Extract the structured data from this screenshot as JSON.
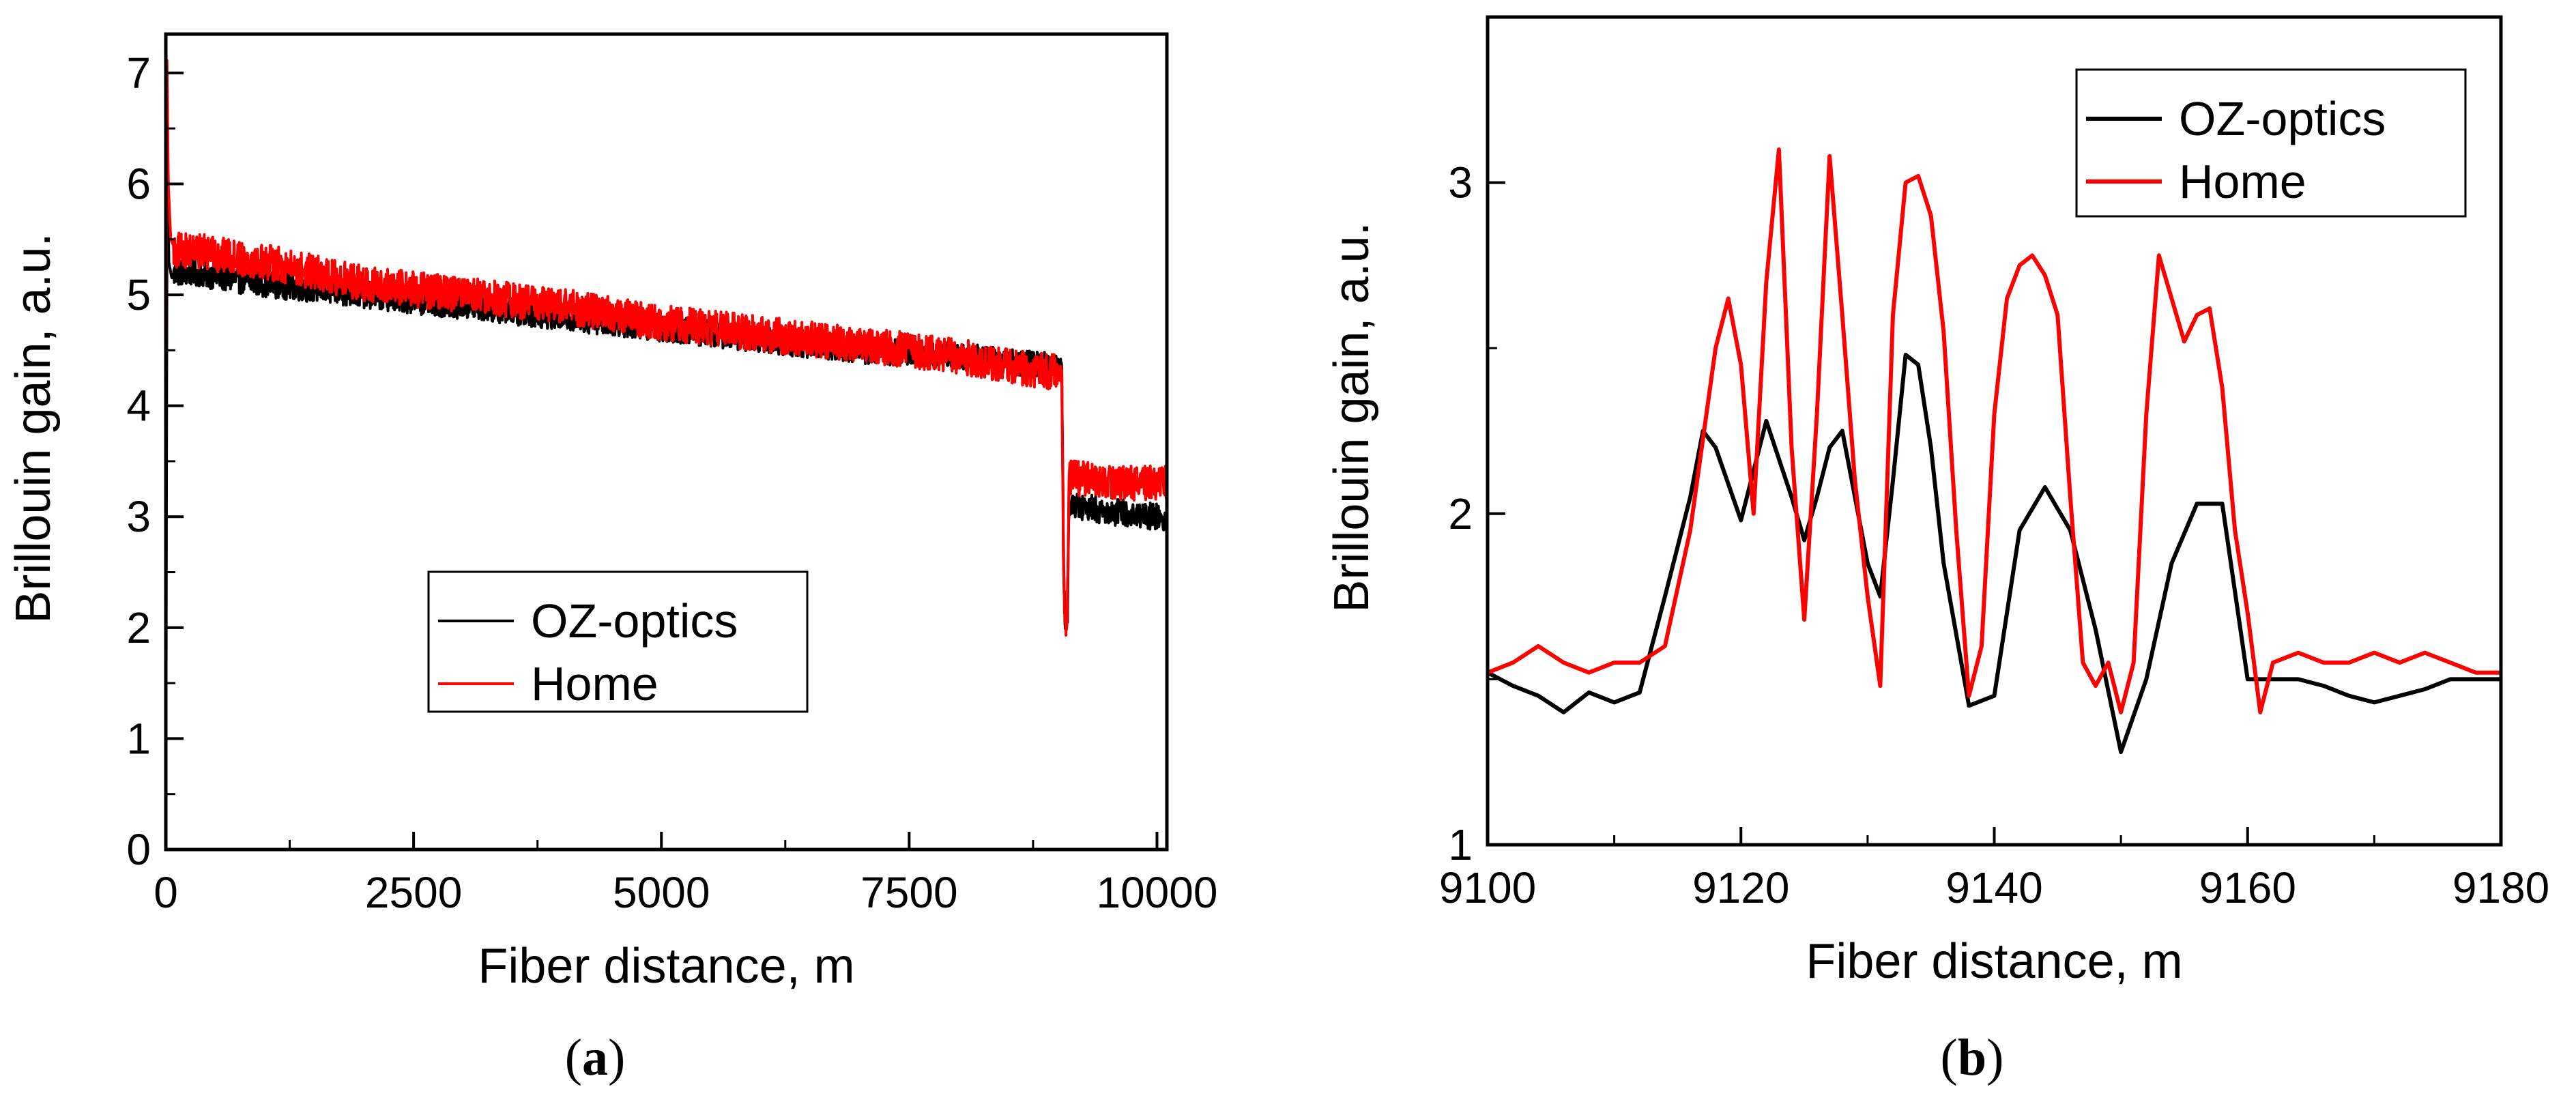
{
  "chart_data": [
    {
      "type": "line",
      "panel_label": "a",
      "caption_open": "(",
      "caption_close": ")",
      "xlabel": "Fiber distance, m",
      "ylabel": "Brillouin gain, a.u.",
      "xlim": [
        0,
        10100
      ],
      "ylim": [
        0,
        7.35
      ],
      "xticks": [
        0,
        2500,
        5000,
        7500,
        10000
      ],
      "xtick_labels": [
        "0",
        "2500",
        "5000",
        "7500",
        "10000"
      ],
      "yticks": [
        0,
        1,
        2,
        3,
        4,
        5,
        6,
        7
      ],
      "ytick_labels": [
        "0",
        "1",
        "2",
        "3",
        "4",
        "5",
        "6",
        "7"
      ],
      "legend": {
        "position": "lower-center",
        "entries": [
          "OZ-optics",
          "Home"
        ]
      },
      "series": [
        {
          "name": "OZ-optics",
          "color": "#000000",
          "noise": 0.12,
          "x": [
            0,
            15,
            30,
            60,
            100,
            300,
            600,
            1000,
            2000,
            3000,
            4000,
            5000,
            6000,
            7000,
            8000,
            8500,
            9000,
            9040,
            9060,
            9080,
            9100,
            9110,
            9130,
            9200,
            9500,
            10000,
            10100
          ],
          "values": [
            0.2,
            6.8,
            5.3,
            5.15,
            5.2,
            5.2,
            5.15,
            5.1,
            5.0,
            4.9,
            4.8,
            4.7,
            4.6,
            4.5,
            4.45,
            4.4,
            4.35,
            4.35,
            2.5,
            1.9,
            2.2,
            3.1,
            3.1,
            3.1,
            3.05,
            3.0,
            2.95
          ]
        },
        {
          "name": "Home",
          "color": "#ff0000",
          "noise": 0.16,
          "x": [
            0,
            10,
            25,
            50,
            100,
            300,
            600,
            1000,
            2000,
            3000,
            4000,
            5000,
            6000,
            7000,
            8000,
            8500,
            9000,
            9040,
            9060,
            9080,
            9100,
            9110,
            9130,
            9200,
            9500,
            10000,
            10100
          ],
          "values": [
            2.8,
            7.25,
            6.0,
            5.5,
            5.4,
            5.4,
            5.35,
            5.3,
            5.1,
            5.0,
            4.9,
            4.75,
            4.65,
            4.55,
            4.45,
            4.35,
            4.3,
            4.3,
            2.3,
            2.0,
            2.3,
            3.3,
            3.35,
            3.35,
            3.3,
            3.3,
            3.3
          ]
        }
      ]
    },
    {
      "type": "line",
      "panel_label": "b",
      "caption_open": "(",
      "caption_close": ")",
      "xlabel": "Fiber distance, m",
      "ylabel": "Brillouin gain, a.u.",
      "xlim": [
        9100,
        9180
      ],
      "ylim": [
        1,
        3.5
      ],
      "xticks": [
        9100,
        9120,
        9140,
        9160,
        9180
      ],
      "xtick_labels": [
        "9100",
        "9120",
        "9140",
        "9160",
        "9180"
      ],
      "yticks": [
        1,
        2,
        3
      ],
      "ytick_labels": [
        "1",
        "2",
        "3"
      ],
      "legend": {
        "position": "top-right",
        "entries": [
          "OZ-optics",
          "Home"
        ]
      },
      "series": [
        {
          "name": "OZ-optics",
          "color": "#000000",
          "x": [
            9100,
            9102,
            9104,
            9106,
            9108,
            9110,
            9112,
            9114,
            9116,
            9117,
            9118,
            9120,
            9122,
            9124,
            9125,
            9126,
            9127,
            9128,
            9130,
            9131,
            9132,
            9133,
            9134,
            9135,
            9136,
            9138,
            9140,
            9142,
            9144,
            9146,
            9148,
            9150,
            9152,
            9154,
            9156,
            9158,
            9160,
            9162,
            9164,
            9166,
            9168,
            9170,
            9172,
            9174,
            9176,
            9178,
            9180
          ],
          "values": [
            1.52,
            1.48,
            1.45,
            1.4,
            1.46,
            1.43,
            1.46,
            1.75,
            2.05,
            2.25,
            2.2,
            1.98,
            2.28,
            2.05,
            1.92,
            2.05,
            2.2,
            2.25,
            1.85,
            1.75,
            2.1,
            2.48,
            2.45,
            2.2,
            1.85,
            1.42,
            1.45,
            1.95,
            2.08,
            1.95,
            1.65,
            1.28,
            1.5,
            1.85,
            2.03,
            2.03,
            1.5,
            1.5,
            1.5,
            1.48,
            1.45,
            1.43,
            1.45,
            1.47,
            1.5,
            1.5,
            1.5
          ]
        },
        {
          "name": "Home",
          "color": "#ff0000",
          "x": [
            9100,
            9102,
            9104,
            9106,
            9108,
            9110,
            9112,
            9114,
            9116,
            9118,
            9119,
            9120,
            9121,
            9122,
            9123,
            9124,
            9125,
            9126,
            9127,
            9128,
            9129,
            9130,
            9131,
            9132,
            9133,
            9134,
            9135,
            9136,
            9137,
            9138,
            9139,
            9140,
            9141,
            9142,
            9143,
            9144,
            9145,
            9146,
            9147,
            9148,
            9149,
            9150,
            9151,
            9152,
            9153,
            9154,
            9155,
            9156,
            9157,
            9158,
            9159,
            9160,
            9161,
            9162,
            9164,
            9166,
            9168,
            9170,
            9172,
            9174,
            9176,
            9178,
            9180
          ],
          "values": [
            1.52,
            1.55,
            1.6,
            1.55,
            1.52,
            1.55,
            1.55,
            1.6,
            1.95,
            2.5,
            2.65,
            2.45,
            2.0,
            2.7,
            3.1,
            2.2,
            1.68,
            2.3,
            3.08,
            2.6,
            2.1,
            1.75,
            1.48,
            2.6,
            3.0,
            3.02,
            2.9,
            2.55,
            1.95,
            1.45,
            1.6,
            2.3,
            2.65,
            2.75,
            2.78,
            2.72,
            2.6,
            2.05,
            1.55,
            1.48,
            1.55,
            1.4,
            1.55,
            2.3,
            2.78,
            2.65,
            2.52,
            2.6,
            2.62,
            2.38,
            1.95,
            1.7,
            1.4,
            1.55,
            1.58,
            1.55,
            1.55,
            1.58,
            1.55,
            1.58,
            1.55,
            1.52,
            1.52
          ]
        }
      ]
    }
  ]
}
